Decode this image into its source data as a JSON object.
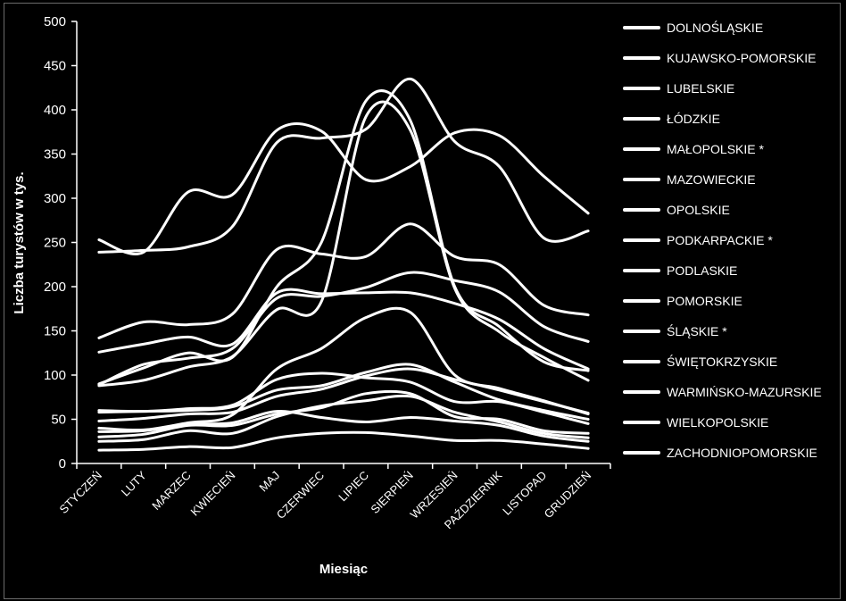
{
  "chart_data": {
    "type": "line",
    "title": "",
    "xlabel": "Miesiąc",
    "ylabel": "Liczba turystów w tys.",
    "ylim": [
      0,
      500
    ],
    "yticks": [
      "0",
      "50",
      "100",
      "150",
      "200",
      "250",
      "300",
      "350",
      "400",
      "450",
      "500"
    ],
    "grid": false,
    "legend_position": "right",
    "categories": [
      "STYCZEŃ",
      "LUTY",
      "MARZEC",
      "KWIECIEŃ",
      "MAJ",
      "CZERWIEC",
      "LIPIEC",
      "SIERPIEŃ",
      "WRZESIEŃ",
      "PAŹDZIERNIK",
      "LISTOPAD",
      "GRUDZIEŃ"
    ],
    "series": [
      {
        "name": "DOLNOŚLĄSKIE",
        "values": [
          239,
          241,
          245,
          268,
          363,
          368,
          378,
          435,
          364,
          336,
          255,
          263
        ]
      },
      {
        "name": "KUJAWSKO-POMORSKIE",
        "values": [
          60,
          59,
          62,
          66,
          95,
          102,
          97,
          92,
          70,
          70,
          58,
          45
        ]
      },
      {
        "name": "LUBELSKIE",
        "values": [
          48,
          51,
          56,
          58,
          76,
          84,
          99,
          107,
          95,
          83,
          70,
          57
        ]
      },
      {
        "name": "ŁÓDZKIE",
        "values": [
          58,
          59,
          60,
          64,
          83,
          88,
          103,
          112,
          92,
          72,
          60,
          50
        ]
      },
      {
        "name": "MAŁOPOLSKIE *",
        "values": [
          253,
          239,
          307,
          304,
          377,
          376,
          321,
          336,
          374,
          371,
          325,
          283
        ]
      },
      {
        "name": "MAZOWIECKIE",
        "values": [
          142,
          160,
          157,
          169,
          242,
          237,
          234,
          271,
          234,
          225,
          179,
          168
        ]
      },
      {
        "name": "OPOLSKIE",
        "values": [
          15,
          16,
          19,
          18,
          29,
          34,
          35,
          31,
          26,
          26,
          22,
          17
        ]
      },
      {
        "name": "PODKARPACKIE *",
        "values": [
          40,
          38,
          46,
          55,
          107,
          130,
          165,
          171,
          100,
          85,
          71,
          56
        ]
      },
      {
        "name": "PODLASKIE",
        "values": [
          30,
          33,
          43,
          43,
          56,
          63,
          79,
          79,
          53,
          50,
          37,
          34
        ]
      },
      {
        "name": "POMORSKIE",
        "values": [
          90,
          108,
          125,
          120,
          200,
          250,
          410,
          388,
          200,
          155,
          115,
          105
        ]
      },
      {
        "name": "ŚLĄSKIE *",
        "values": [
          126,
          135,
          143,
          135,
          193,
          192,
          193,
          193,
          181,
          163,
          130,
          107
        ]
      },
      {
        "name": "ŚWIĘTOKRZYSKIE",
        "values": [
          25,
          27,
          37,
          34,
          53,
          65,
          71,
          76,
          58,
          47,
          34,
          29
        ]
      },
      {
        "name": "WARMIŃSKO-MAZURSKIE",
        "values": [
          88,
          94,
          109,
          121,
          174,
          183,
          392,
          377,
          198,
          149,
          120,
          94
        ]
      },
      {
        "name": "WIELKOPOLSKIE",
        "values": [
          89,
          112,
          119,
          130,
          187,
          189,
          199,
          216,
          207,
          194,
          155,
          138
        ]
      },
      {
        "name": "ZACHODNIOPOMORSKIE",
        "values": [
          36,
          37,
          44,
          46,
          59,
          52,
          47,
          52,
          48,
          43,
          31,
          25
        ]
      }
    ]
  }
}
